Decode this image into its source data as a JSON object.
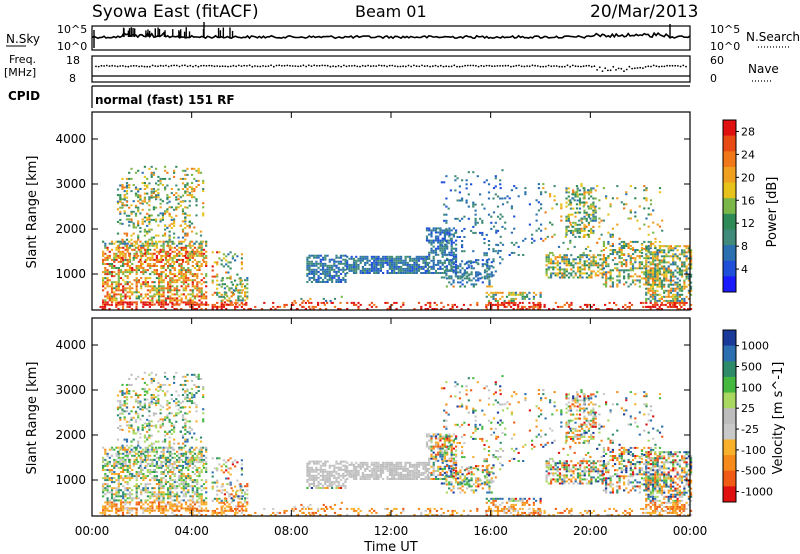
{
  "title": {
    "left": "Syowa East (fitACF)",
    "center": "Beam 01",
    "right": "20/Mar/2013"
  },
  "noise_panel": {
    "left_label": "N.Sky",
    "right_label": "N.Search",
    "left_ticks": [
      "10^5",
      "10^0"
    ],
    "right_ticks": [
      "10^5",
      "10^0"
    ]
  },
  "freq_panel": {
    "left_label": "Freq.",
    "left_unit": "[MHz]",
    "left_ticks": [
      "18",
      "8"
    ],
    "right_label": "Nave",
    "right_ticks": [
      "60",
      "0"
    ]
  },
  "cpid_panel": {
    "label": "CPID",
    "program": "normal (fast) 151 RF"
  },
  "colors": {
    "power": [
      "#1a1aff",
      "#1f4fd8",
      "#2a70b0",
      "#3f8a7a",
      "#2e8b57",
      "#7ab648",
      "#e6c21a",
      "#f0a020",
      "#f07818",
      "#e84a14",
      "#e01010"
    ],
    "velocity": [
      "#e01010",
      "#f05a14",
      "#f58a1a",
      "#f8b02a",
      "#c8c8c8",
      "#bdbdbd",
      "#a8d860",
      "#45b840",
      "#2e8b6a",
      "#2b6fb0",
      "#1a3a9a"
    ]
  },
  "chart_data": [
    {
      "type": "heatmap",
      "name": "power",
      "ylabel": "Slant Range [km]",
      "yticks": [
        "1000",
        "2000",
        "3000",
        "4000"
      ],
      "ylim": [
        200,
        4600
      ],
      "xlim": [
        0,
        24
      ],
      "colorbar_label": "Power [dB]",
      "colorbar_ticks": [
        "4",
        "8",
        "12",
        "16",
        "20",
        "24",
        "28"
      ],
      "colorbar_range": [
        0,
        30
      ]
    },
    {
      "type": "heatmap",
      "name": "velocity",
      "ylabel": "Slant Range [km]",
      "yticks": [
        "1000",
        "2000",
        "3000",
        "4000"
      ],
      "ylim": [
        200,
        4600
      ],
      "xlim": [
        0,
        24
      ],
      "colorbar_label": "Velocity [m s^-1]",
      "colorbar_ticks": [
        "1000",
        "500",
        "100",
        "25",
        "-25",
        "-100",
        "-500",
        "-1000"
      ],
      "xticks": [
        "00:00",
        "04:00",
        "08:00",
        "12:00",
        "16:00",
        "20:00",
        "00:00"
      ],
      "xlabel": "Time UT"
    }
  ]
}
